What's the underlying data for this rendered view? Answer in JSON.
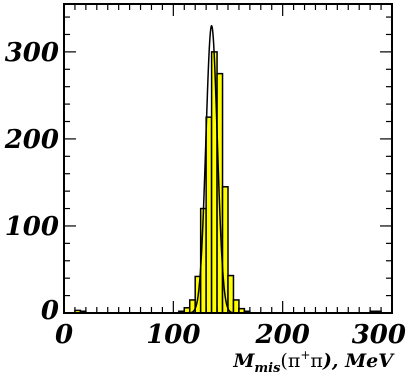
{
  "chart_data": {
    "type": "histogram",
    "xlabel": {
      "base": "M",
      "subscript": "mis",
      "open": "(",
      "p1": "π",
      "sup": "+",
      "p2": "π",
      "tail": "), MeV"
    },
    "xlim": [
      0,
      300
    ],
    "ylim": [
      0,
      355
    ],
    "xticks": [
      0,
      100,
      200,
      300
    ],
    "xtick_labels": [
      "0",
      "100",
      "200",
      "300"
    ],
    "yticks": [
      0,
      100,
      200,
      300
    ],
    "ytick_labels": [
      "0",
      "100",
      "200",
      "300"
    ],
    "grid": false,
    "fill_color": "#ffff00",
    "line_color": "#000000",
    "bins": {
      "x_start": [
        10,
        15,
        105,
        110,
        115,
        120,
        125,
        130,
        135,
        140,
        145,
        150,
        155,
        160,
        165,
        280,
        285
      ],
      "width": 5,
      "counts": [
        3,
        2,
        2,
        6,
        15,
        42,
        120,
        225,
        300,
        275,
        145,
        43,
        15,
        5,
        2,
        2,
        2
      ]
    },
    "fit": {
      "type": "gaussian",
      "mean": 135,
      "sigma": 5.2,
      "amplitude": 330
    }
  }
}
